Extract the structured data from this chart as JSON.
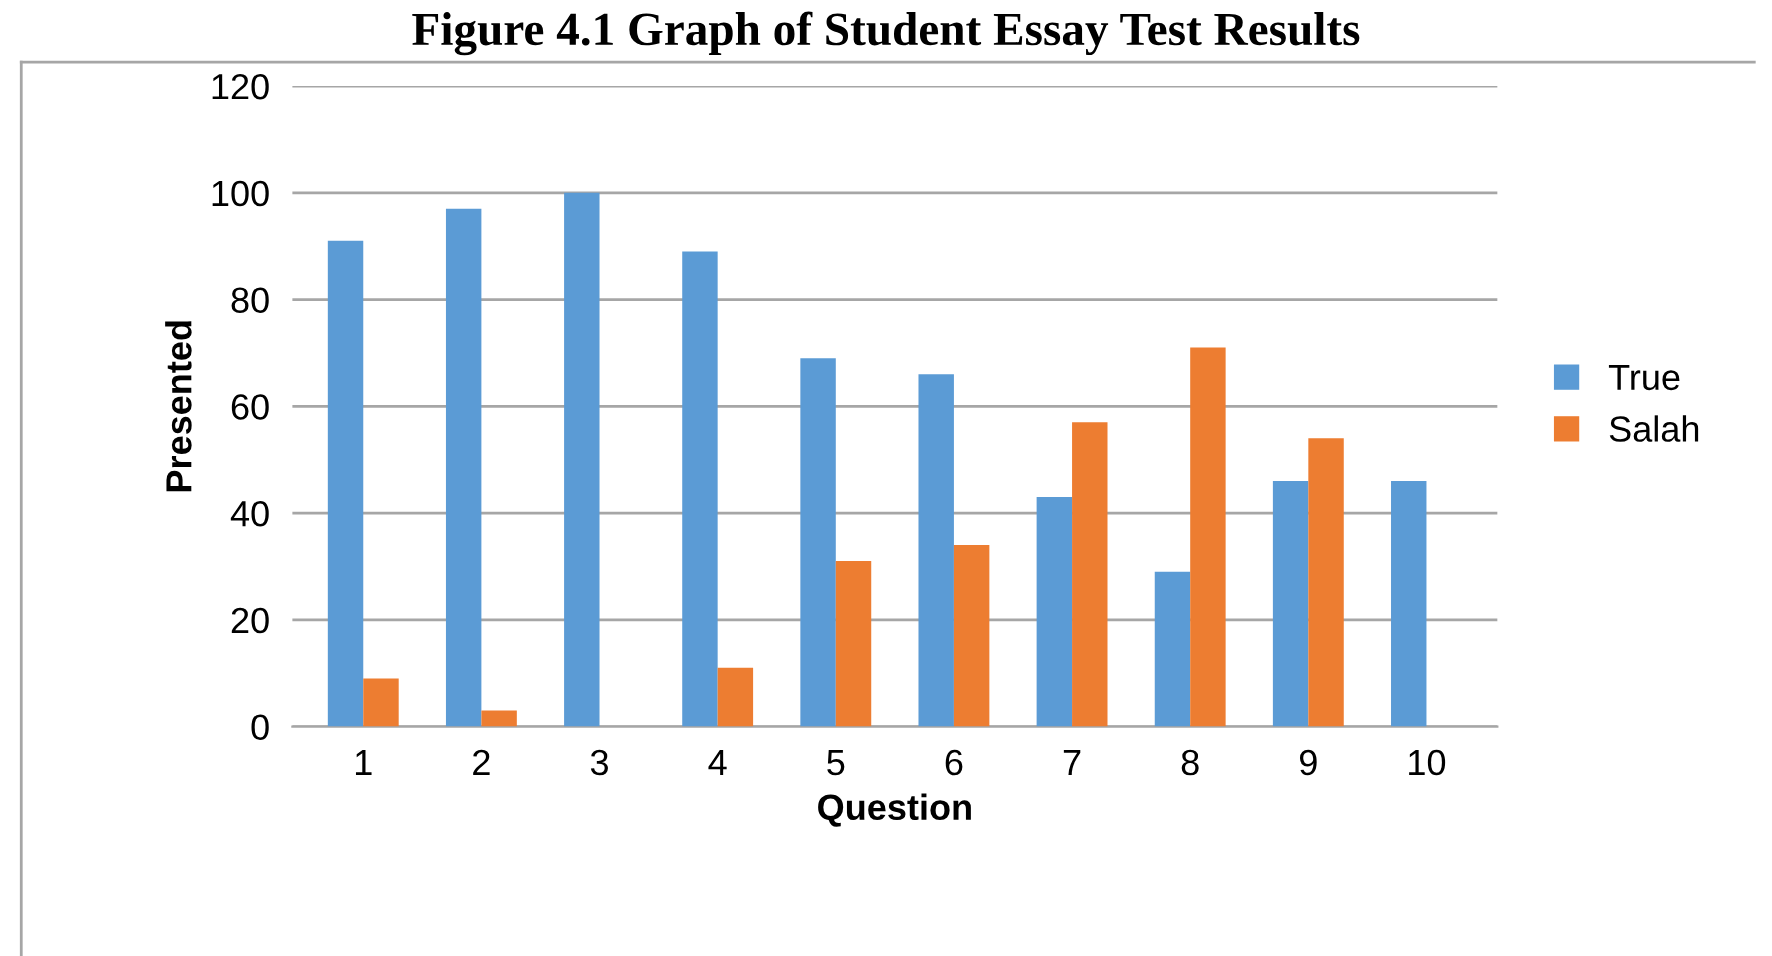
{
  "chart_data": {
    "type": "bar",
    "title": "Figure 4.1 Graph of Student Essay Test Results",
    "xlabel": "Question",
    "ylabel": "Presented",
    "categories": [
      "1",
      "2",
      "3",
      "4",
      "5",
      "6",
      "7",
      "8",
      "9",
      "10"
    ],
    "series": [
      {
        "name": "True",
        "color": "#5b9bd5",
        "values": [
          91,
          97,
          100,
          89,
          69,
          66,
          43,
          29,
          46,
          46
        ]
      },
      {
        "name": "Salah",
        "color": "#ed7d31",
        "values": [
          9,
          3,
          0,
          11,
          31,
          34,
          57,
          71,
          54,
          0
        ]
      }
    ],
    "ylim": [
      0,
      120
    ],
    "yticks": [
      0,
      20,
      40,
      60,
      80,
      100,
      120
    ],
    "grid": "y",
    "legend": "right"
  }
}
